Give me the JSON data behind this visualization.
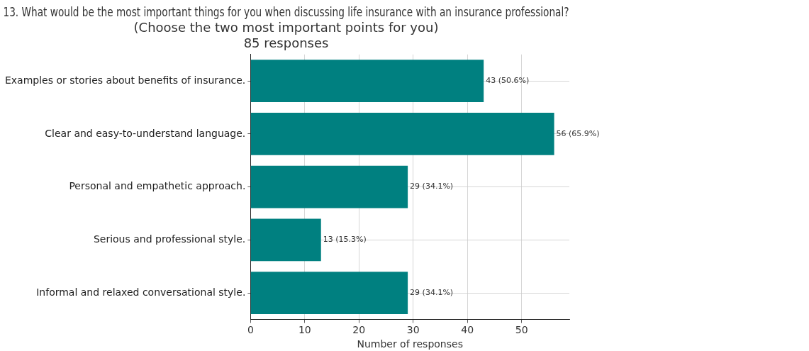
{
  "chart_data": {
    "type": "bar",
    "orientation": "horizontal",
    "title": "13. What would be the most important things for you when discussing life insurance with an insurance professional?\n(Choose the two most important points for you)\n85 responses",
    "xlabel": "Number of responses",
    "categories": [
      "Examples or stories about benefits of insurance.",
      "Clear and easy-to-understand language.",
      "Personal and empathetic approach.",
      "Serious and professional style.",
      "Informal and relaxed conversational style."
    ],
    "values": [
      43,
      56,
      29,
      13,
      29
    ],
    "value_labels": [
      "43 (50.6%)",
      "56 (65.9%)",
      "29 (34.1%)",
      "13 (15.3%)",
      "29 (34.1%)"
    ],
    "color": "#008080",
    "xlim": [
      0,
      58.8
    ],
    "xticks": [
      0,
      10,
      20,
      30,
      40,
      50
    ],
    "grid": true,
    "legend": false
  }
}
